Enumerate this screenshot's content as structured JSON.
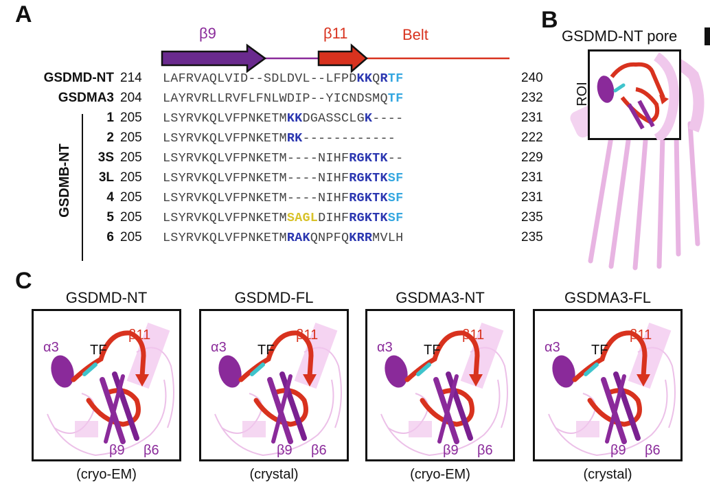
{
  "panels": {
    "a": "A",
    "b": "B",
    "c": "C"
  },
  "topology": {
    "beta9": "β9",
    "beta11": "β11",
    "belt": "Belt"
  },
  "gsdmb_group_label": "GSDMB-NT",
  "rows": [
    {
      "name": "GSDMD-NT",
      "start": "214",
      "end": "240",
      "segs": [
        [
          "LAFRVAQLVID--SDLDVL--LFPD",
          ""
        ],
        [
          "KK",
          "dark"
        ],
        [
          "Q",
          ""
        ],
        [
          "R",
          "dark"
        ],
        [
          "TF",
          "light"
        ]
      ]
    },
    {
      "name": "GSDMA3",
      "start": "204",
      "end": "232",
      "segs": [
        [
          "LAYRVRLLRVFLFNLWDIP--YICNDSMQ",
          ""
        ],
        [
          "TF",
          "light"
        ]
      ]
    },
    {
      "name": "1",
      "start": "205",
      "end": "231",
      "segs": [
        [
          "LSYRVKQLVFPNKETM",
          ""
        ],
        [
          "KK",
          "dark"
        ],
        [
          "DGASSCLG",
          ""
        ],
        [
          "K",
          "dark"
        ],
        [
          "----",
          ""
        ]
      ]
    },
    {
      "name": "2",
      "start": "205",
      "end": "222",
      "segs": [
        [
          "LSYRVKQLVFPNKETM",
          ""
        ],
        [
          "RK",
          "dark"
        ],
        [
          "------------",
          ""
        ]
      ]
    },
    {
      "name": "3S",
      "start": "205",
      "end": "229",
      "segs": [
        [
          "LSYRVKQLVFPNKETM----NIHF",
          ""
        ],
        [
          "RGKTK",
          "dark"
        ],
        [
          "--",
          ""
        ]
      ]
    },
    {
      "name": "3L",
      "start": "205",
      "end": "231",
      "segs": [
        [
          "LSYRVKQLVFPNKETM----NIHF",
          ""
        ],
        [
          "RGKTK",
          "dark"
        ],
        [
          "SF",
          "light"
        ]
      ]
    },
    {
      "name": "4",
      "start": "205",
      "end": "231",
      "segs": [
        [
          "LSYRVKQLVFPNKETM----NIHF",
          ""
        ],
        [
          "RGKTK",
          "dark"
        ],
        [
          "SF",
          "light"
        ]
      ]
    },
    {
      "name": "5",
      "start": "205",
      "end": "235",
      "segs": [
        [
          "LSYRVKQLVFPNKETM",
          ""
        ],
        [
          "SAGL",
          "yellow"
        ],
        [
          "DIHF",
          ""
        ],
        [
          "RGKTK",
          "dark"
        ],
        [
          "SF",
          "light"
        ]
      ]
    },
    {
      "name": "6",
      "start": "205",
      "end": "235",
      "segs": [
        [
          "LSYRVKQLVFPNKETM",
          ""
        ],
        [
          "RAK",
          "dark"
        ],
        [
          "QNPFQ",
          ""
        ],
        [
          "KRR",
          "dark"
        ],
        [
          "MVLH",
          ""
        ]
      ]
    }
  ],
  "panel_b": {
    "title": "GSDMD-NT pore",
    "roi": "ROI"
  },
  "structures": [
    {
      "title": "GSDMD-NT",
      "method": "(cryo-EM)",
      "a3": "α3",
      "tf": "TF",
      "b11": "β11",
      "b9": "β9",
      "b6": "β6"
    },
    {
      "title": "GSDMD-FL",
      "method": "(crystal)",
      "a3": "α3",
      "tf": "TF",
      "b11": "β11",
      "b9": "β9",
      "b6": "β6"
    },
    {
      "title": "GSDMA3-NT",
      "method": "(cryo-EM)",
      "a3": "α3",
      "tf": "TF",
      "b11": "β11",
      "b9": "β9",
      "b6": "β6"
    },
    {
      "title": "GSDMA3-FL",
      "method": "(crystal)",
      "a3": "α3",
      "tf": "TF",
      "b11": "β11",
      "b9": "β9",
      "b6": "β6"
    }
  ],
  "colors": {
    "purple": "#8a2a9a",
    "red": "#d8321e",
    "cyan": "#3fc4cc",
    "pink": "#e9b5e3",
    "dark_blue": "#2a36b0",
    "light_blue": "#35a7e0",
    "yellow": "#d8c22a"
  }
}
